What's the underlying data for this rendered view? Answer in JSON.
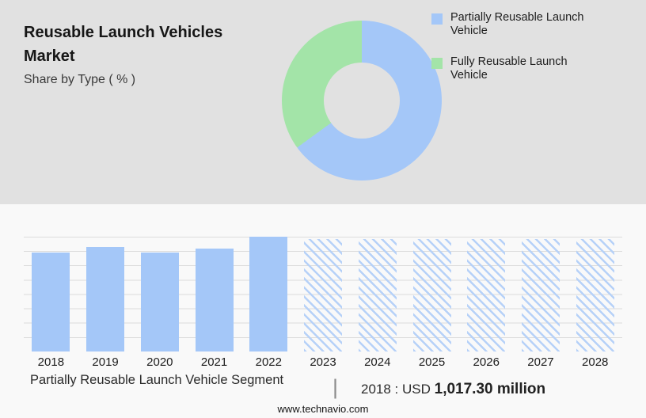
{
  "header": {
    "title": "Reusable Launch Vehicles Market",
    "subtitle": "Share by Type ( % )"
  },
  "colors": {
    "partially_blue": "#a4c7f8",
    "fully_green": "#a3e4a8",
    "top_background": "#e1e1e1",
    "bottom_background": "#f9f9f9"
  },
  "legend": [
    {
      "label": "Partially Reusable Launch Vehicle",
      "color": "#a4c7f8"
    },
    {
      "label": "Fully Reusable Launch Vehicle",
      "color": "#a3e4a8"
    }
  ],
  "chart_data": [
    {
      "type": "pie",
      "subtype": "donut",
      "title": "Share by Type ( % )",
      "slices": [
        {
          "label": "Partially Reusable Launch Vehicle",
          "value": 65,
          "color": "#a4c7f8"
        },
        {
          "label": "Fully Reusable Launch Vehicle",
          "value": 35,
          "color": "#a3e4a8"
        }
      ],
      "legend_position": "right"
    },
    {
      "type": "bar",
      "categories": [
        "2018",
        "2019",
        "2020",
        "2021",
        "2022",
        "2023",
        "2024",
        "2025",
        "2026",
        "2027",
        "2028"
      ],
      "values": [
        86,
        91,
        86,
        90,
        100,
        98,
        98,
        98,
        98,
        98,
        98
      ],
      "solid_years": [
        "2018",
        "2019",
        "2020",
        "2021",
        "2022"
      ],
      "hatched_years": [
        "2023",
        "2024",
        "2025",
        "2026",
        "2027",
        "2028"
      ],
      "ylim": [
        0,
        100
      ],
      "grid": true,
      "xlabel": "",
      "ylabel": ""
    }
  ],
  "caption": {
    "segment_label": "Partially Reusable Launch Vehicle Segment",
    "separator": "|",
    "stat_prefix": "2018 : USD",
    "stat_value": "1,017.30 million"
  },
  "footer": {
    "website": "www.technavio.com"
  }
}
